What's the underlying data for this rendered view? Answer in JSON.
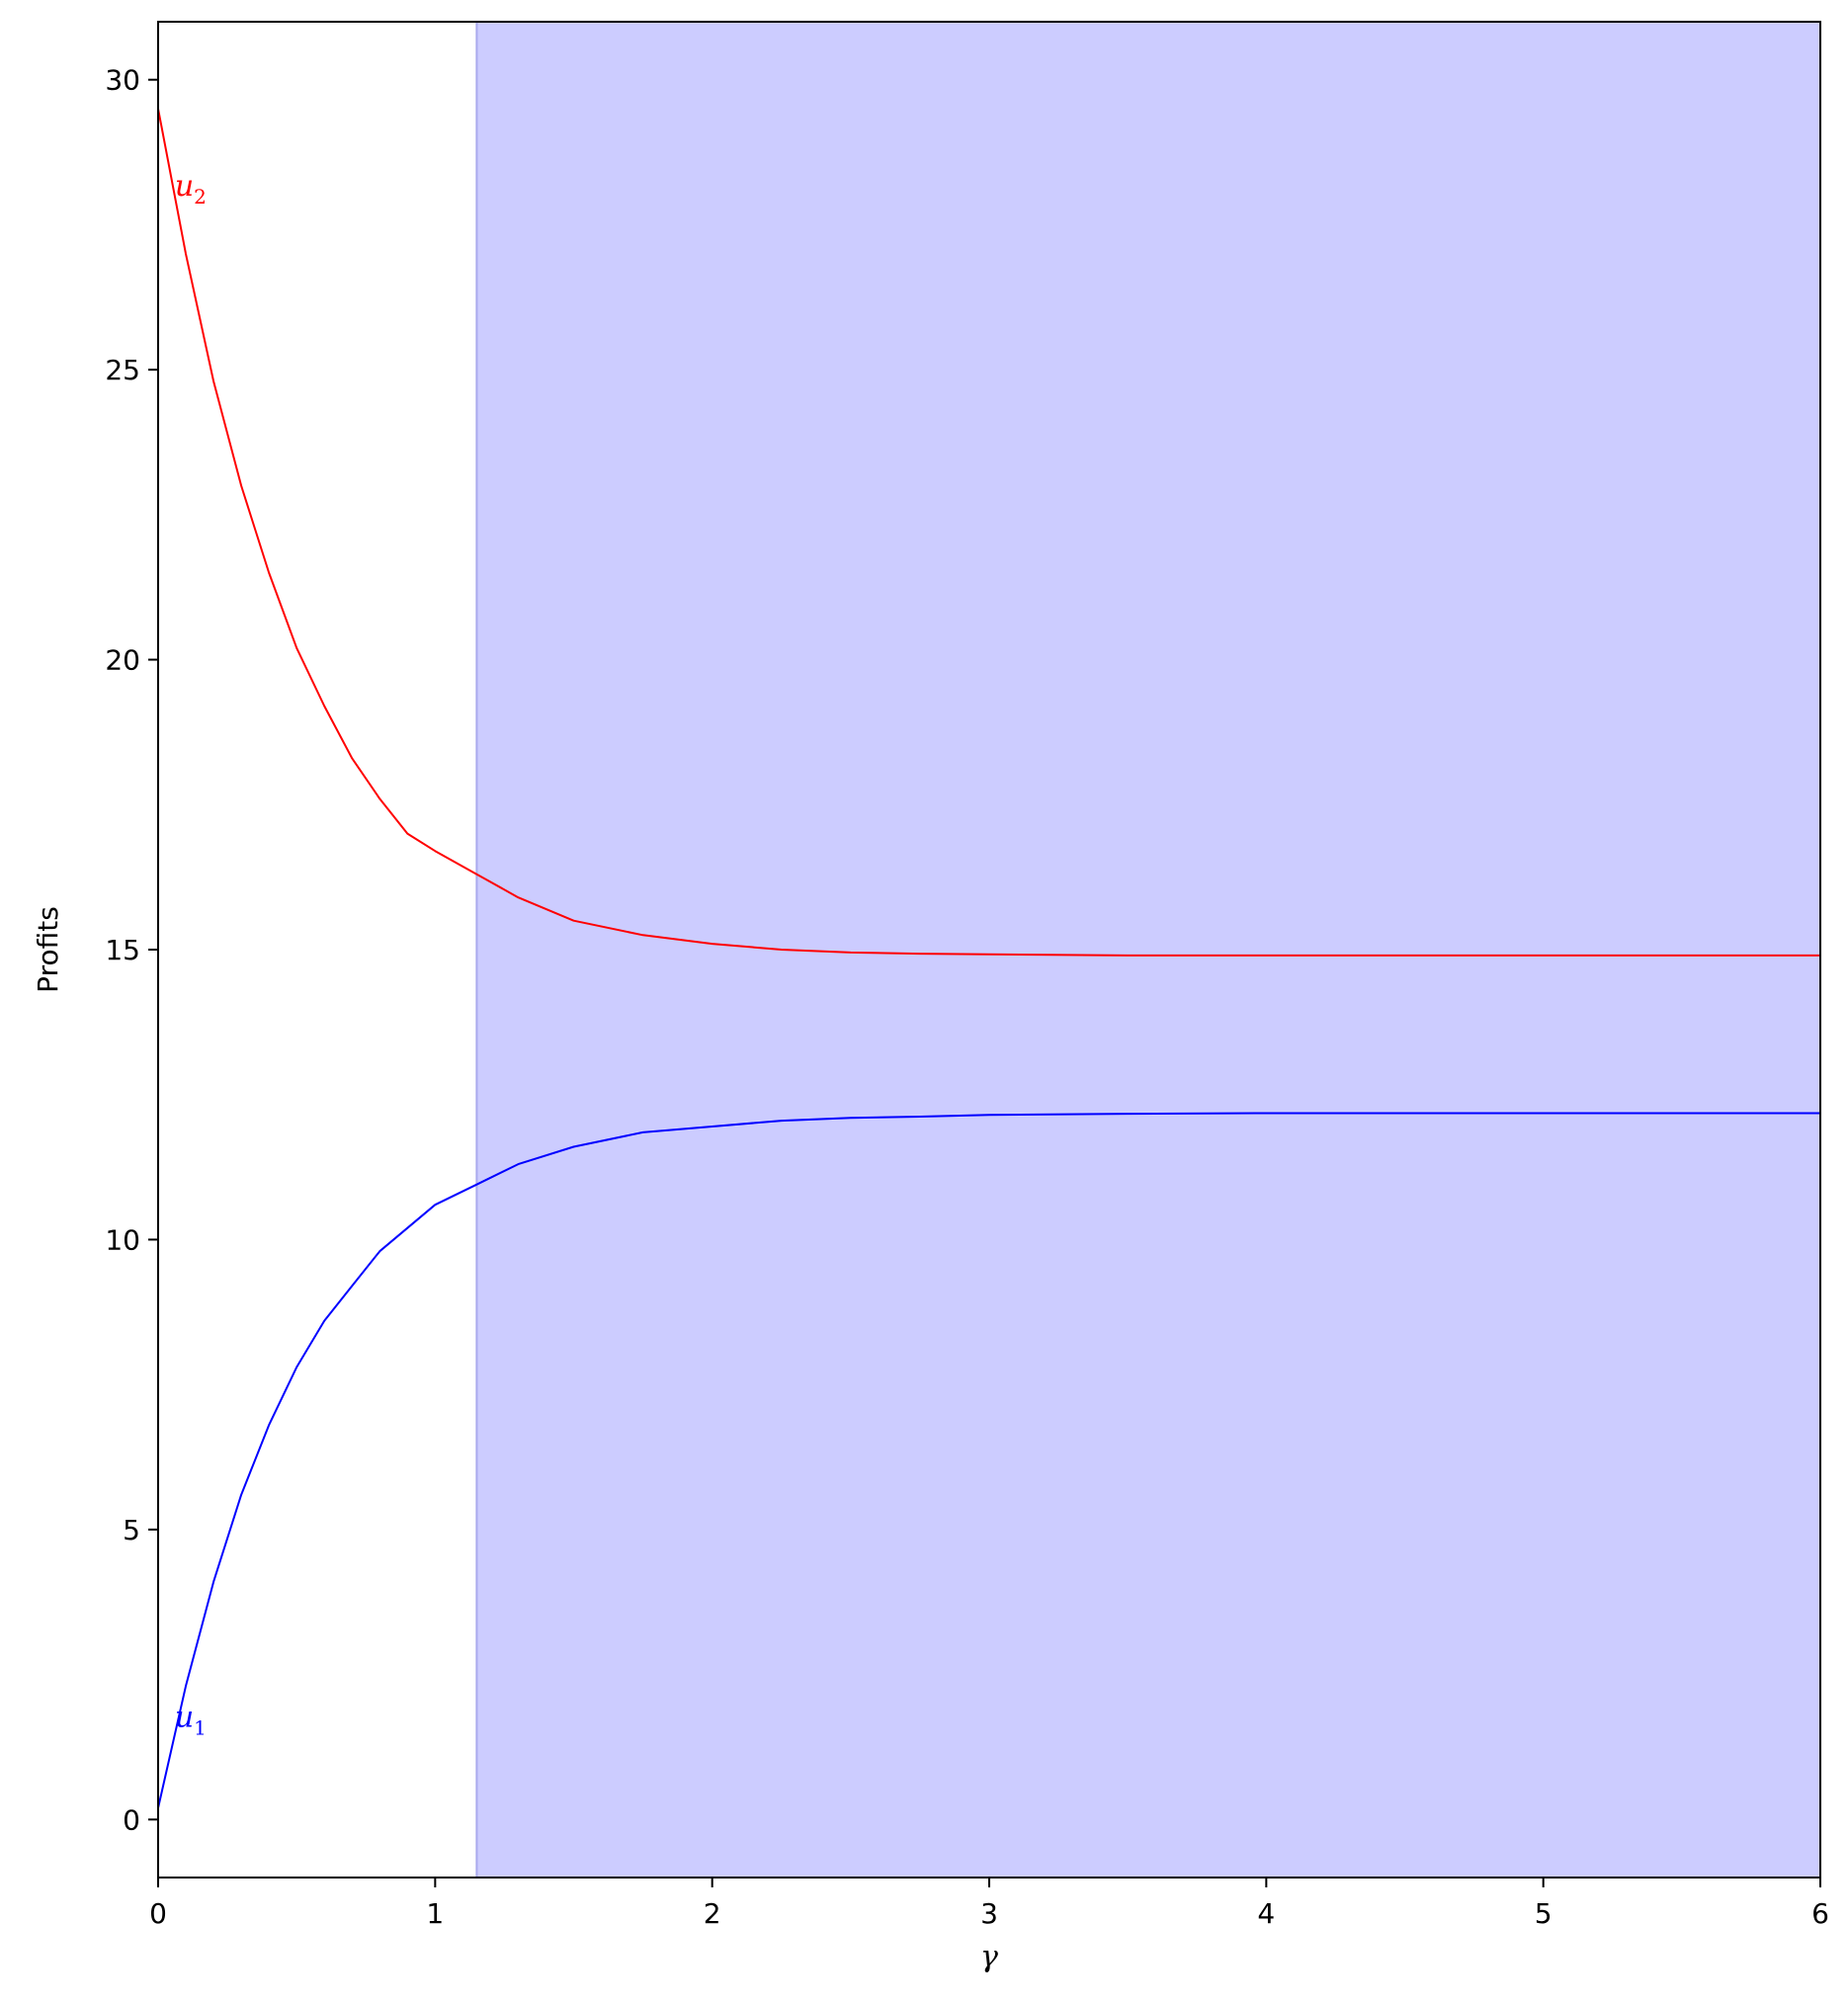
{
  "chart_data": {
    "type": "line",
    "title": "",
    "xlabel": "γ",
    "ylabel": "Profits",
    "xlim": [
      0,
      6
    ],
    "ylim": [
      -1,
      31
    ],
    "xticks": [
      0,
      1,
      2,
      3,
      4,
      5,
      6
    ],
    "yticks": [
      0,
      5,
      10,
      15,
      20,
      25,
      30
    ],
    "grid": false,
    "shaded_region": {
      "x_start": 1.15,
      "x_end": 6,
      "color": "#ccccff"
    },
    "series": [
      {
        "name": "u2",
        "label_main": "u",
        "label_sub": "2",
        "color": "#ff0000",
        "x": [
          0,
          0.1,
          0.2,
          0.3,
          0.4,
          0.5,
          0.6,
          0.7,
          0.8,
          0.9,
          1.0,
          1.15,
          1.3,
          1.5,
          1.75,
          2.0,
          2.25,
          2.5,
          2.75,
          3.0,
          3.5,
          4.0,
          5.0,
          6.0
        ],
        "y": [
          29.5,
          27.0,
          24.8,
          23.0,
          21.5,
          20.2,
          19.2,
          18.3,
          17.6,
          17.0,
          16.7,
          16.3,
          15.9,
          15.5,
          15.25,
          15.1,
          15.0,
          14.95,
          14.93,
          14.92,
          14.9,
          14.9,
          14.9,
          14.9
        ]
      },
      {
        "name": "u1",
        "label_main": "u",
        "label_sub": "1",
        "color": "#0000ff",
        "x": [
          0,
          0.1,
          0.2,
          0.3,
          0.4,
          0.5,
          0.6,
          0.7,
          0.8,
          0.9,
          1.0,
          1.15,
          1.3,
          1.5,
          1.75,
          2.0,
          2.25,
          2.5,
          2.75,
          3.0,
          3.5,
          4.0,
          5.0,
          6.0
        ],
        "y": [
          0.2,
          2.3,
          4.1,
          5.6,
          6.8,
          7.8,
          8.6,
          9.2,
          9.8,
          10.2,
          10.6,
          10.95,
          11.3,
          11.6,
          11.85,
          11.95,
          12.05,
          12.1,
          12.12,
          12.15,
          12.17,
          12.18,
          12.18,
          12.18
        ]
      }
    ]
  }
}
